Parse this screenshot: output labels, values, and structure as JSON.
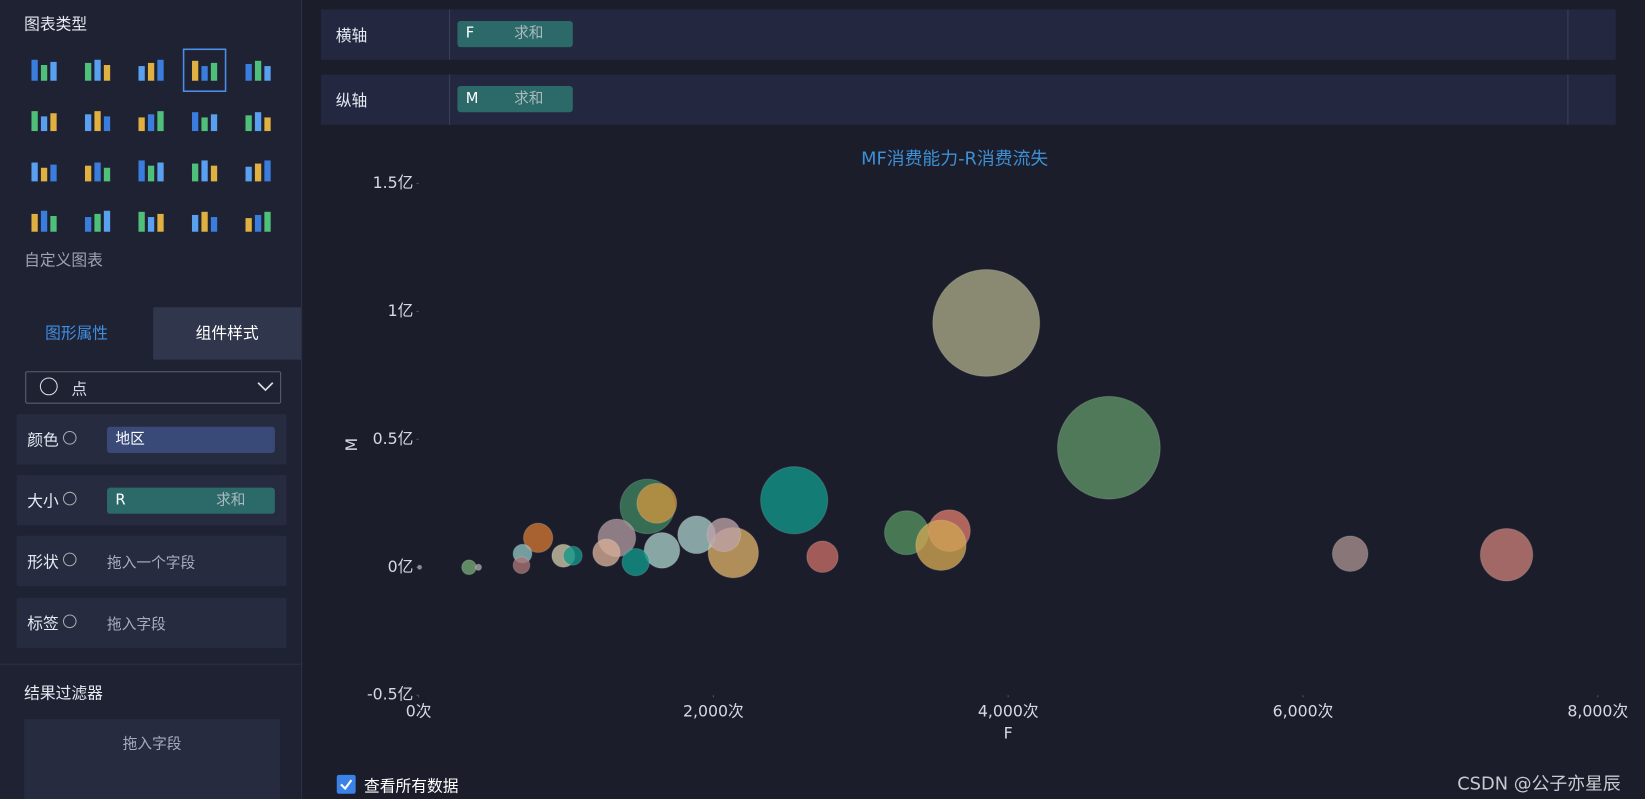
{
  "sidebar": {
    "chart_types_title": "图表类型",
    "custom_chart": "自定义图表",
    "tabs": [
      "图形属性",
      "组件样式"
    ],
    "mark_type": "点",
    "properties": [
      {
        "label": "颜色",
        "field": "地区"
      },
      {
        "label": "大小",
        "field": "R",
        "aggregation": "求和"
      },
      {
        "label": "形状",
        "placeholder": "拖入一个字段"
      },
      {
        "label": "标签",
        "placeholder": "拖入字段"
      }
    ],
    "filter_title": "结果过滤器",
    "filter_placeholder": "拖入字段"
  },
  "shelves": [
    {
      "label": "横轴",
      "field": "F",
      "aggregation": "求和"
    },
    {
      "label": "纵轴",
      "field": "M",
      "aggregation": "求和"
    }
  ],
  "chart_data": {
    "type": "bubble",
    "title": "MF消费能力-R消费流失",
    "x_label": "F",
    "y_label": "M",
    "xlim": [
      0,
      8000
    ],
    "ylim": [
      -0.5,
      1.5
    ],
    "xticks": [
      {
        "value": 0,
        "label": "0次"
      },
      {
        "value": 2000,
        "label": "2,000次"
      },
      {
        "value": 4000,
        "label": "4,000次"
      },
      {
        "value": 6000,
        "label": "6,000次"
      },
      {
        "value": 8000,
        "label": "8,000次"
      }
    ],
    "yticks": [
      {
        "value": -0.5,
        "label": "-0.5亿"
      },
      {
        "value": 0,
        "label": "0亿"
      },
      {
        "value": 0.5,
        "label": "0.5亿"
      },
      {
        "value": 1,
        "label": "1亿"
      },
      {
        "value": 1.5,
        "label": "1.5亿"
      }
    ],
    "x": [
      3851,
      4683,
      2548,
      1552,
      1616,
      3310,
      3601,
      3544,
      2135,
      1886,
      2071,
      1345,
      1651,
      1473,
      1274,
      2740,
      811,
      982,
      1046,
      705,
      698,
      342,
      406,
      7,
      6320,
      7381
    ],
    "values": [
      0.955,
      0.467,
      0.262,
      0.238,
      0.25,
      0.135,
      0.143,
      0.086,
      0.057,
      0.127,
      0.127,
      0.115,
      0.066,
      0.02,
      0.057,
      0.041,
      0.115,
      0.045,
      0.045,
      0.053,
      0.008,
      0,
      0,
      0,
      0.053,
      0.049
    ],
    "sizes": [
      2601,
      2401,
      1024,
      676,
      361,
      441,
      400,
      576,
      576,
      324,
      256,
      324,
      289,
      169,
      169,
      225,
      196,
      121,
      81,
      81,
      64,
      49,
      9,
      4,
      289,
      625
    ],
    "colors": [
      "#a9a986",
      "#5f9467",
      "#0f978a",
      "#3f8460",
      "#d0963f",
      "#54925f",
      "#d8786a",
      "#d1a653",
      "#d8ae66",
      "#a6c9c6",
      "#bea2a6",
      "#ae979e",
      "#a6cec6",
      "#0f978a",
      "#d6ae96",
      "#c66e66",
      "#d07432",
      "#cec6a6",
      "#0f978a",
      "#8ec0bf",
      "#a87474",
      "#74a874",
      "#a8a8a8",
      "#a8a8a8",
      "#a89090",
      "#c67e76"
    ]
  },
  "footer": {
    "checkbox": "查看所有数据",
    "watermark": "CSDN @公子亦星辰"
  }
}
